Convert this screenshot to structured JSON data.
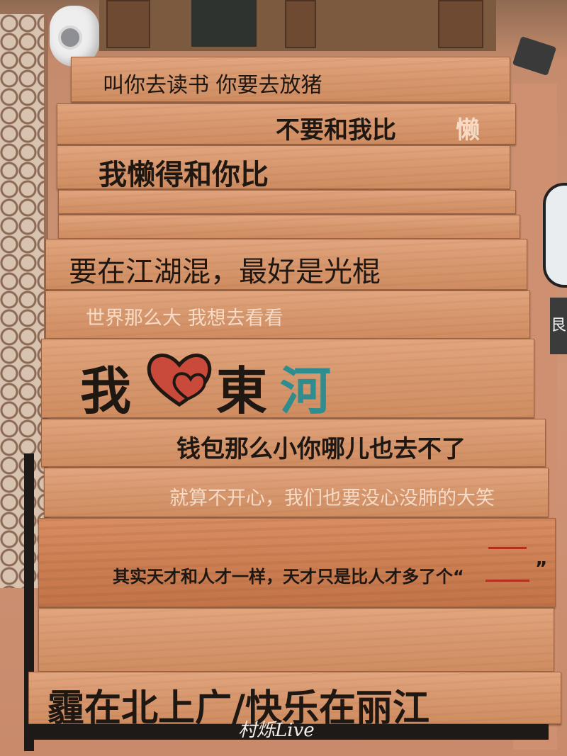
{
  "signs": {
    "line1": "叫你去读书 你要去放猪",
    "line2_main": "不要和我比",
    "line2_tail": "懒",
    "line3": "我懒得和你比",
    "line4": "要在江湖混，最好是光棍",
    "line5": "世界那么大 我想去看看",
    "logo_wo": "我",
    "logo_dong": "東",
    "logo_he": "河",
    "line6": "钱包那么小你哪儿也去不了",
    "line7": "就算不开心，我们也要没心没肺的大笑",
    "line8": "其实天才和人才一样，天才只是比人才多了个“",
    "line8_close": "”",
    "line9": "霾在北上广/快乐在丽江",
    "right_sign_char": "艮"
  },
  "watermark": "村烁Live",
  "colors": {
    "ink": "#1f1712",
    "heart_red": "#c9493a",
    "he_teal": "#2f8c8f",
    "dash_red": "#b2301c"
  },
  "icons": [
    "security-camera-icon",
    "heart-icon"
  ]
}
